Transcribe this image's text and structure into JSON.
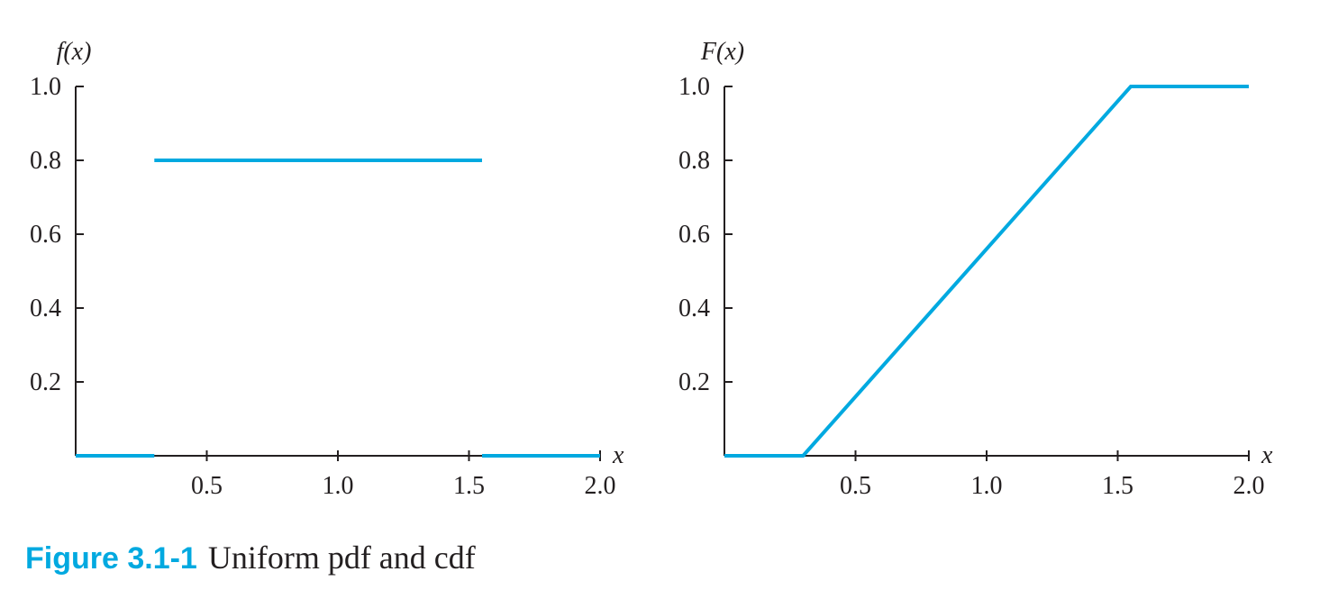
{
  "caption": {
    "number": "Figure 3.1-1",
    "text": "Uniform pdf and cdf"
  },
  "colors": {
    "series": "#00a9e0",
    "axis": "#231f20"
  },
  "chart_data": [
    {
      "type": "line",
      "title": "",
      "ylabel": "f(x)",
      "xlabel": "x",
      "xlim": [
        0,
        2.0
      ],
      "ylim": [
        0,
        1.0
      ],
      "x_ticks": [
        "0.5",
        "1.0",
        "1.5",
        "2.0"
      ],
      "y_ticks": [
        "0.2",
        "0.4",
        "0.6",
        "0.8",
        "1.0"
      ],
      "grid": false,
      "segments": [
        [
          [
            0,
            0
          ],
          [
            0.3,
            0
          ]
        ],
        [
          [
            0.3,
            0.8
          ],
          [
            1.55,
            0.8
          ]
        ],
        [
          [
            1.55,
            0
          ],
          [
            2.0,
            0
          ]
        ]
      ]
    },
    {
      "type": "line",
      "title": "",
      "ylabel": "F(x)",
      "xlabel": "x",
      "xlim": [
        0,
        2.0
      ],
      "ylim": [
        0,
        1.0
      ],
      "x_ticks": [
        "0.5",
        "1.0",
        "1.5",
        "2.0"
      ],
      "y_ticks": [
        "0.2",
        "0.4",
        "0.6",
        "0.8",
        "1.0"
      ],
      "grid": false,
      "segments": [
        [
          [
            0,
            0
          ],
          [
            0.3,
            0
          ],
          [
            1.55,
            1.0
          ],
          [
            2.0,
            1.0
          ]
        ]
      ]
    }
  ]
}
